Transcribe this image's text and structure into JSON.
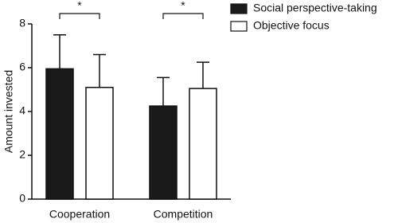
{
  "chart_data": {
    "type": "bar",
    "y_label": "Amount  invested",
    "categories": [
      "Cooperation",
      "Competition"
    ],
    "series": [
      {
        "name": "Social perspective-taking",
        "color": "#1a1a1a",
        "values": [
          5.95,
          4.25
        ],
        "errors": [
          1.55,
          1.3
        ]
      },
      {
        "name": "Objective focus",
        "color": "#ffffff",
        "values": [
          5.1,
          5.05
        ],
        "errors": [
          1.5,
          1.2
        ]
      }
    ],
    "annotations": [
      "*",
      "*"
    ],
    "ylim": [
      0,
      8
    ],
    "yticks": [
      0,
      2,
      4,
      6,
      8
    ],
    "grid": false,
    "legend": "top-right"
  }
}
